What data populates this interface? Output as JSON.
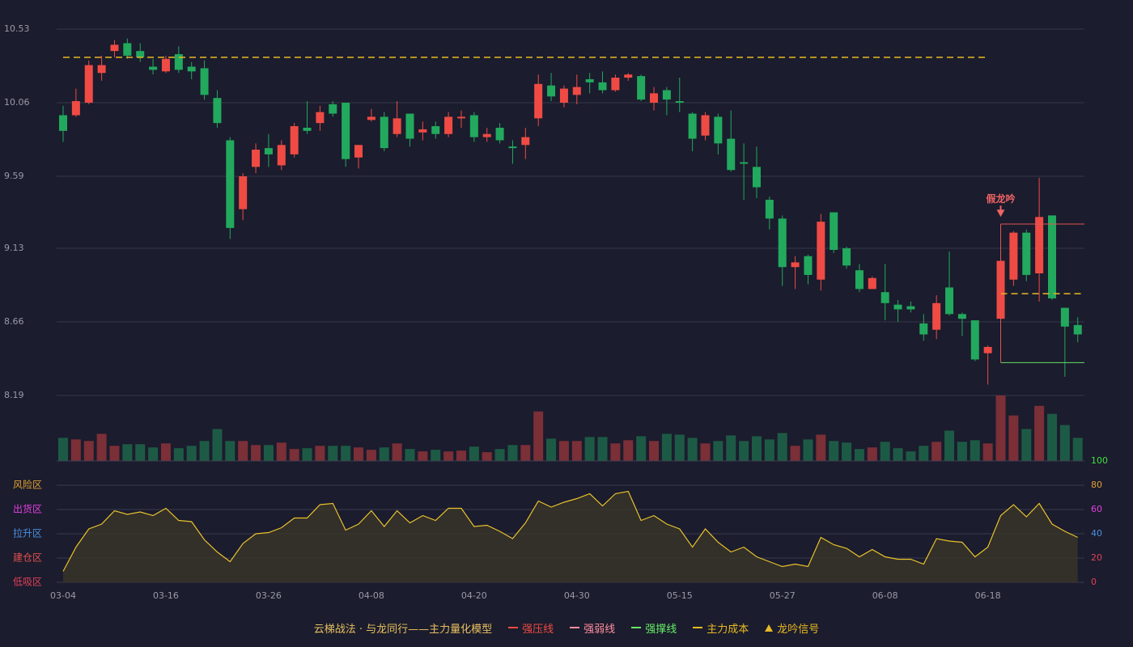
{
  "chart_data": [
    {
      "type": "candlestick",
      "categories": [
        "03-04",
        null,
        null,
        null,
        null,
        null,
        null,
        null,
        "03-16",
        null,
        null,
        null,
        null,
        null,
        null,
        null,
        "03-26",
        null,
        null,
        null,
        null,
        null,
        null,
        null,
        "04-08",
        null,
        null,
        null,
        null,
        null,
        null,
        null,
        "04-20",
        null,
        null,
        null,
        null,
        null,
        null,
        null,
        "04-30",
        null,
        null,
        null,
        null,
        null,
        null,
        null,
        "05-15",
        null,
        null,
        null,
        null,
        null,
        null,
        null,
        "05-27",
        null,
        null,
        null,
        null,
        null,
        null,
        null,
        "06-08",
        null,
        null,
        null,
        null,
        null,
        null,
        null,
        "06-18",
        null,
        null,
        null,
        null,
        null,
        null,
        null
      ],
      "open": [
        9.98,
        9.98,
        10.06,
        10.25,
        10.39,
        10.44,
        10.39,
        10.29,
        10.26,
        10.37,
        10.29,
        10.28,
        10.09,
        9.82,
        9.38,
        9.65,
        9.77,
        9.66,
        9.73,
        9.9,
        9.93,
        10.05,
        10.06,
        9.71,
        9.95,
        9.97,
        9.86,
        9.99,
        9.87,
        9.91,
        9.86,
        9.96,
        9.98,
        9.84,
        9.9,
        9.78,
        9.79,
        9.96,
        10.17,
        10.06,
        10.11,
        10.21,
        10.19,
        10.14,
        10.22,
        10.23,
        10.06,
        10.14,
        10.07,
        9.99,
        9.85,
        9.97,
        9.83,
        9.68,
        9.65,
        9.44,
        9.32,
        9.01,
        9.08,
        8.93,
        9.36,
        9.13,
        8.99,
        8.87,
        8.85,
        8.77,
        8.76,
        8.65,
        8.61,
        8.88,
        8.71,
        8.67,
        8.46,
        8.68,
        8.93,
        9.23,
        8.97,
        9.34,
        8.75,
        8.64
      ],
      "high": [
        10.04,
        10.15,
        10.33,
        10.36,
        10.46,
        10.47,
        10.44,
        10.34,
        10.36,
        10.42,
        10.32,
        10.33,
        10.14,
        9.84,
        9.61,
        9.8,
        9.86,
        9.82,
        9.93,
        10.07,
        10.04,
        10.07,
        10.06,
        9.79,
        10.02,
        10.0,
        10.07,
        9.99,
        9.94,
        9.94,
        10.0,
        10.01,
        10.0,
        9.9,
        9.93,
        9.82,
        9.9,
        10.24,
        10.25,
        10.17,
        10.24,
        10.25,
        10.26,
        10.24,
        10.25,
        10.24,
        10.16,
        10.16,
        10.22,
        10.0,
        10.0,
        9.99,
        10.01,
        9.8,
        9.78,
        9.46,
        9.34,
        9.08,
        9.09,
        9.35,
        9.36,
        9.14,
        9.03,
        8.95,
        9.03,
        8.8,
        8.79,
        8.71,
        8.83,
        9.11,
        8.72,
        8.67,
        8.51,
        9.11,
        9.24,
        9.25,
        9.58,
        9.34,
        8.75,
        8.69
      ],
      "low": [
        9.81,
        9.97,
        10.05,
        10.2,
        10.35,
        10.34,
        10.32,
        10.24,
        10.25,
        10.25,
        10.21,
        10.08,
        9.9,
        9.19,
        9.31,
        9.61,
        9.65,
        9.63,
        9.71,
        9.86,
        9.88,
        9.97,
        9.65,
        9.64,
        9.94,
        9.75,
        9.84,
        9.78,
        9.82,
        9.83,
        9.84,
        9.9,
        9.81,
        9.81,
        9.8,
        9.67,
        9.7,
        9.91,
        10.07,
        10.03,
        10.05,
        10.12,
        10.12,
        10.13,
        10.2,
        10.07,
        10.01,
        9.98,
        10.0,
        9.75,
        9.82,
        9.73,
        9.62,
        9.44,
        9.45,
        9.25,
        8.89,
        8.87,
        8.9,
        8.86,
        9.1,
        9.0,
        8.85,
        8.87,
        8.67,
        8.66,
        8.72,
        8.54,
        8.55,
        8.7,
        8.57,
        8.41,
        8.26,
        8.68,
        8.89,
        8.92,
        8.79,
        8.8,
        8.31,
        8.53
      ],
      "close": [
        9.88,
        10.07,
        10.3,
        10.3,
        10.43,
        10.36,
        10.35,
        10.27,
        10.34,
        10.27,
        10.26,
        10.11,
        9.93,
        9.26,
        9.59,
        9.76,
        9.73,
        9.79,
        9.91,
        9.88,
        10.0,
        9.99,
        9.7,
        9.79,
        9.97,
        9.77,
        9.96,
        9.83,
        9.89,
        9.86,
        9.97,
        9.97,
        9.84,
        9.86,
        9.82,
        9.77,
        9.84,
        10.18,
        10.1,
        10.15,
        10.16,
        10.19,
        10.14,
        10.22,
        10.24,
        10.08,
        10.12,
        10.08,
        10.06,
        9.83,
        9.98,
        9.8,
        9.63,
        9.67,
        9.52,
        9.32,
        9.01,
        9.04,
        8.96,
        9.3,
        9.12,
        9.02,
        8.87,
        8.94,
        8.78,
        8.74,
        8.74,
        8.58,
        8.78,
        8.71,
        8.68,
        8.42,
        8.5,
        9.05,
        9.23,
        8.96,
        9.33,
        8.81,
        8.63,
        8.58
      ],
      "up_color": "#ef4b44",
      "down_color": "#22a95e",
      "ylim": [
        8.19,
        10.53
      ],
      "yticks": [
        10.53,
        10.06,
        9.59,
        9.13,
        8.66,
        8.19
      ],
      "grid": true,
      "levels": [
        {
          "value": 10.35,
          "from": 0,
          "to": 72,
          "color": "#e8b923",
          "style": "dashed"
        },
        {
          "value": 9.285,
          "from": 73,
          "color": "#e05555",
          "style": "solid"
        },
        {
          "value": 8.84,
          "from": 73,
          "color": "#e8b923",
          "style": "dashed"
        },
        {
          "value": 8.4,
          "from": 73,
          "color": "#66e066",
          "style": "solid"
        }
      ],
      "annotation": {
        "text": "假龙吟",
        "index": 73,
        "value": 9.33,
        "color": "#f06464"
      }
    },
    {
      "type": "bar",
      "values": [
        29,
        27,
        25,
        34,
        19,
        21,
        21,
        17,
        22,
        16,
        19,
        25,
        40,
        25,
        25,
        20,
        20,
        23,
        15,
        16,
        19,
        19,
        19,
        17,
        14,
        17,
        22,
        15,
        12,
        14,
        12,
        13,
        18,
        11,
        15,
        20,
        20,
        62,
        28,
        25,
        25,
        30,
        30,
        22,
        26,
        31,
        25,
        34,
        33,
        29,
        22,
        25,
        32,
        25,
        31,
        27,
        35,
        19,
        27,
        33,
        25,
        23,
        15,
        17,
        24,
        16,
        12,
        19,
        24,
        38,
        24,
        26,
        22,
        82,
        57,
        40,
        69,
        59,
        45,
        29
      ],
      "up_color": "#7b2f37",
      "down_color": "#1d5a45"
    },
    {
      "type": "line",
      "values": [
        9,
        29,
        44,
        48,
        59,
        56,
        58,
        55,
        61,
        51,
        50,
        35,
        25,
        17,
        32,
        40,
        41,
        45,
        53,
        53,
        64,
        65,
        43,
        48,
        59,
        46,
        59,
        49,
        55,
        51,
        61,
        61,
        46,
        47,
        42,
        36,
        49,
        67,
        62,
        66,
        69,
        73,
        63,
        73,
        75,
        51,
        55,
        48,
        44,
        29,
        44,
        33,
        25,
        29,
        21,
        17,
        13,
        15,
        13,
        37,
        31,
        28,
        21,
        27,
        21,
        19,
        19,
        15,
        36,
        34,
        33,
        21,
        29,
        55,
        64,
        54,
        65,
        48,
        42,
        37
      ],
      "color": "#e8c22c",
      "fill": "#3a3528",
      "ylim": [
        0,
        100
      ],
      "yticks": [
        0,
        20,
        40,
        60,
        80,
        100
      ],
      "grid": true,
      "ytick_colors": [
        "#e0405a",
        "#e0405a",
        "#4a90e2",
        "#e040e0",
        "#e0a030",
        "#44dd44"
      ],
      "zones": [
        {
          "label": "风险区",
          "value": 80,
          "color": "#e0a030"
        },
        {
          "label": "出货区",
          "value": 60,
          "color": "#e040e0"
        },
        {
          "label": "拉升区",
          "value": 40,
          "color": "#4a90e2"
        },
        {
          "label": "建仓区",
          "value": 20,
          "color": "#e05050"
        },
        {
          "label": "低吸区",
          "value": 0,
          "color": "#e0405a"
        }
      ]
    }
  ],
  "legend": {
    "title": "云梯战法 · 与龙同行——主力量化模型",
    "title_color": "#e8c060",
    "items": [
      {
        "name": "强压线",
        "color": "#ef4b44",
        "style": "solid"
      },
      {
        "name": "强弱线",
        "color": "#ff8fa0",
        "style": "dashed"
      },
      {
        "name": "强撑线",
        "color": "#66ee66",
        "style": "solid"
      },
      {
        "name": "主力成本",
        "color": "#e8b923",
        "style": "dashed"
      },
      {
        "name": "龙吟信号",
        "color": "#e8b923",
        "style": "triangle"
      }
    ]
  }
}
